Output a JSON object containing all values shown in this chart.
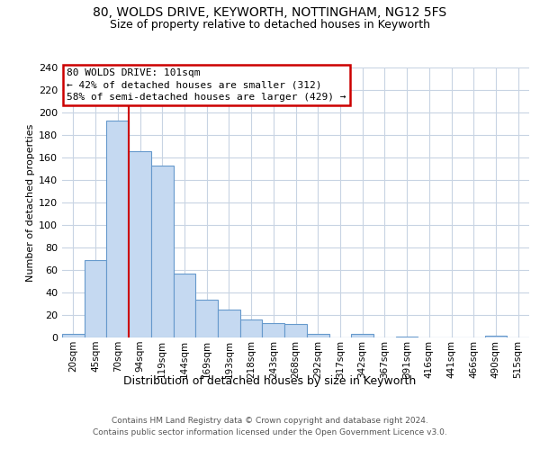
{
  "title_line1": "80, WOLDS DRIVE, KEYWORTH, NOTTINGHAM, NG12 5FS",
  "title_line2": "Size of property relative to detached houses in Keyworth",
  "xlabel": "Distribution of detached houses by size in Keyworth",
  "ylabel": "Number of detached properties",
  "bar_labels": [
    "20sqm",
    "45sqm",
    "70sqm",
    "94sqm",
    "119sqm",
    "144sqm",
    "169sqm",
    "193sqm",
    "218sqm",
    "243sqm",
    "268sqm",
    "292sqm",
    "317sqm",
    "342sqm",
    "367sqm",
    "391sqm",
    "416sqm",
    "441sqm",
    "466sqm",
    "490sqm",
    "515sqm"
  ],
  "bar_values": [
    3,
    69,
    193,
    166,
    153,
    57,
    34,
    25,
    16,
    13,
    12,
    3,
    0,
    3,
    0,
    1,
    0,
    0,
    0,
    2,
    0
  ],
  "bar_color": "#c5d9f1",
  "bar_edgecolor": "#6699cc",
  "vline_x": 2.5,
  "annotation_line_color": "#cc0000",
  "annotation_box_color": "#cc0000",
  "annotation_text_line1": "80 WOLDS DRIVE: 101sqm",
  "annotation_text_line2": "← 42% of detached houses are smaller (312)",
  "annotation_text_line3": "58% of semi-detached houses are larger (429) →",
  "ylim": [
    0,
    240
  ],
  "yticks": [
    0,
    20,
    40,
    60,
    80,
    100,
    120,
    140,
    160,
    180,
    200,
    220,
    240
  ],
  "footnote_line1": "Contains HM Land Registry data © Crown copyright and database right 2024.",
  "footnote_line2": "Contains public sector information licensed under the Open Government Licence v3.0.",
  "background_color": "#ffffff",
  "grid_color": "#c8d4e3"
}
